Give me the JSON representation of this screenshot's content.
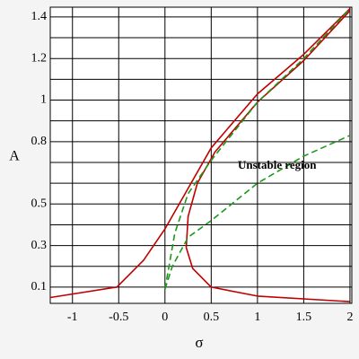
{
  "chart_data": {
    "type": "line",
    "xlabel": "σ",
    "ylabel": "A",
    "annotation": "Unstable region",
    "xlim": [
      -1.24,
      2.02
    ],
    "ylim": [
      0.022,
      1.447
    ],
    "xticks": [
      -1,
      -0.5,
      0,
      0.5,
      1,
      1.5,
      2
    ],
    "yticks": [
      0.1,
      0.3,
      0.5,
      0.8,
      1,
      1.2,
      1.4
    ],
    "y_minor_ticks": [
      0.2,
      0.4,
      0.6,
      0.7,
      0.9,
      1.1,
      1.3
    ],
    "grid": true,
    "series": [
      {
        "color": "#c00000",
        "dashed": false,
        "x": [
          -1.24,
          -0.52,
          -0.23,
          0,
          0.25,
          0.5,
          1,
          1.5,
          2
        ],
        "values": [
          0.05,
          0.1,
          0.23,
          0.38,
          0.575,
          0.77,
          1.03,
          1.22,
          1.44
        ]
      },
      {
        "color": "#c00000",
        "dashed": false,
        "x": [
          2,
          1,
          0.5,
          0.3,
          0.23,
          0.25,
          0.35,
          0.54,
          1,
          1.5,
          2
        ],
        "values": [
          0.03,
          0.057,
          0.1,
          0.19,
          0.29,
          0.44,
          0.6,
          0.75,
          0.99,
          1.19,
          1.43
        ]
      },
      {
        "color": "#1a9a1a",
        "dashed": true,
        "x": [
          0,
          0.107,
          0.25,
          0.5,
          1,
          1.5,
          2
        ],
        "values": [
          0.09,
          0.36,
          0.55,
          0.71,
          0.99,
          1.2,
          1.44
        ]
      },
      {
        "color": "#1a9a1a",
        "dashed": true,
        "x": [
          0,
          0.08,
          0.25,
          0.5,
          1,
          1.5,
          2
        ],
        "values": [
          0.09,
          0.2,
          0.34,
          0.42,
          0.6,
          0.73,
          0.83
        ]
      }
    ]
  }
}
